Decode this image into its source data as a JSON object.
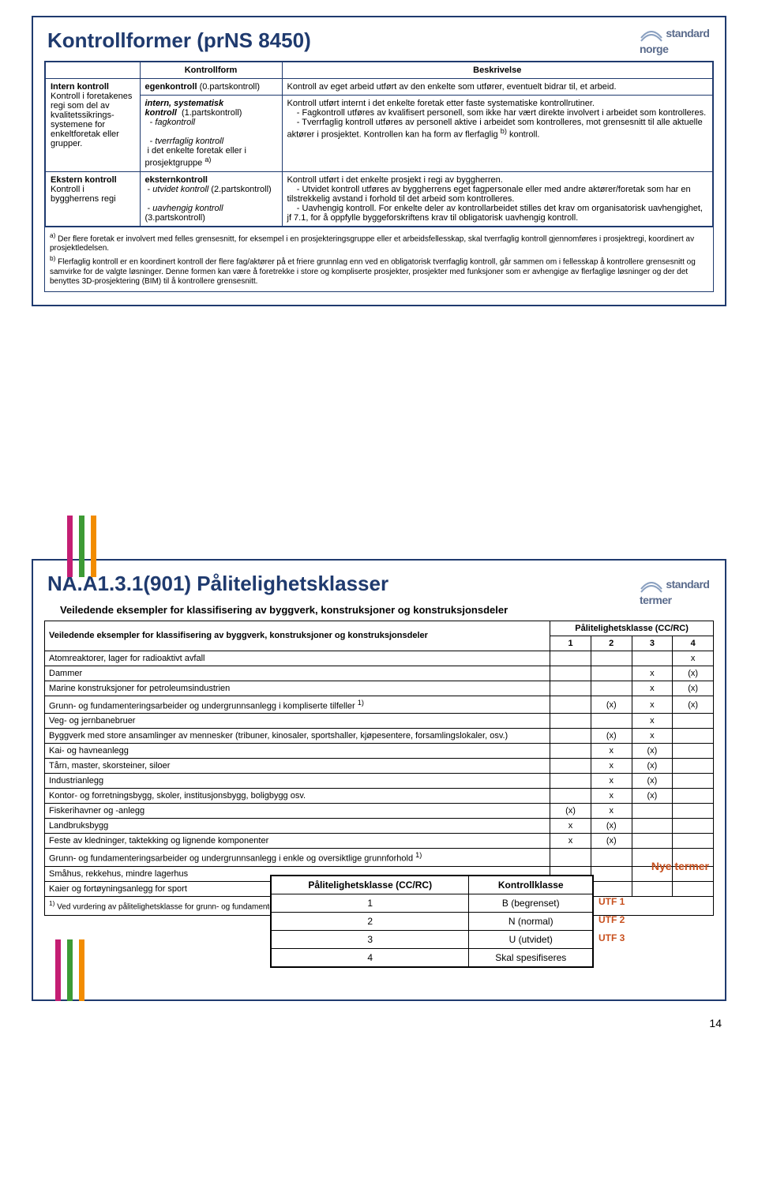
{
  "page_number": "14",
  "slide1": {
    "title": "Kontrollformer (prNS 8450)",
    "logo": {
      "line1": "standard",
      "line2": "norge"
    },
    "headers": {
      "c1": "",
      "c2": "Kontrollform",
      "c3": "Beskrivelse"
    },
    "rows": [
      {
        "c1": "<b>Intern kontroll</b><br>Kontroll i foretakenes regi som del av kvalitetssikrings-systemene for enkeltforetak eller grupper.",
        "c2a": "<b>egenkontroll</b> (0.partskontroll)",
        "c3a": "Kontroll av eget arbeid utført av den enkelte som utfører, eventuelt bidrar til, et arbeid.",
        "c2b": "<b><i>intern, systematisk kontroll</i></b>&nbsp;&nbsp;(1.partskontroll)<br>&nbsp;&nbsp;- <i>fagkontroll</i><br><br>&nbsp;&nbsp;- <i>tverrfaglig kontroll</i><br>&nbsp;i det enkelte foretak eller i prosjektgruppe <sup>a)</sup>",
        "c3b": "Kontroll utført internt i det enkelte foretak etter faste systematiske kontrollrutiner.<br>&nbsp;&nbsp;&nbsp;&nbsp;- Fagkontroll utføres av kvalifisert personell, som ikke har vært direkte involvert i arbeidet som kontrolleres.<br>&nbsp;&nbsp;&nbsp;&nbsp;- Tverrfaglig kontroll utføres av personell aktive i arbeidet som kontrolleres, mot grensesnitt til alle aktuelle aktører i prosjektet. Kontrollen kan ha form av flerfaglig <sup>b)</sup> kontroll."
      },
      {
        "c1": "<b>Ekstern kontroll</b><br>Kontroll i byggherrens regi",
        "c2a": "<b>eksternkontroll</b><br>&nbsp;- <i>utvidet kontroll</i> (2.partskontroll)<br><br>&nbsp;- <i>uavhengig kontroll</i> (3.partskontroll)",
        "c3a": "Kontroll utført i det enkelte prosjekt i regi av byggherren.<br>&nbsp;&nbsp;&nbsp;&nbsp;- Utvidet kontroll utføres av byggherrens eget fagpersonale eller med andre aktører/foretak som har en tilstrekkelig avstand i forhold til det arbeid som kontrolleres.<br>&nbsp;&nbsp;&nbsp;&nbsp;- Uavhengig kontroll. For enkelte deler av kontrollarbeidet stilles det krav om organisatorisk uavhengighet, jf 7.1, for å oppfylle byggeforskriftens krav til obligatorisk uavhengig kontroll."
      }
    ],
    "footnotes": "<sup>a)</sup> Der flere foretak er involvert med felles grensesnitt, for eksempel i en prosjekteringsgruppe eller et arbeidsfellesskap, skal tverrfaglig kontroll gjennomføres i prosjektregi, koordinert av prosjektledelsen.<br><sup>b)</sup> Flerfaglig kontroll er en koordinert kontroll der flere fag/aktører på et friere grunnlag enn ved en obligatorisk tverrfaglig kontroll, går sammen om i fellesskap å kontrollere grensesnitt og samvirke for de valgte løsninger. Denne formen kan være å foretrekke i store og kompliserte prosjekter, prosjekter med funksjoner som er avhengige av flerfaglige løsninger og der det benyttes 3D-prosjektering (BIM) til å kontrollere grensesnitt."
  },
  "slide2": {
    "title": "NA.A1.3.1(901) Pålitelighetsklasser",
    "subtitle": "Veiledende eksempler for klassifisering av byggverk, konstruksjoner og konstruksjonsdeler",
    "logo": {
      "line1": "standard",
      "line2": "norge",
      "line3": "termer"
    },
    "table_header_left": "Veiledende eksempler for klassifisering av byggverk, konstruksjoner og konstruksjonsdeler",
    "table_header_right": "Pålitelighetsklasse (CC/RC)",
    "cols": [
      "1",
      "2",
      "3",
      "4"
    ],
    "rows": [
      {
        "label": "Atomreaktorer, lager for radioaktivt avfall",
        "v": [
          "",
          "",
          "",
          "x"
        ]
      },
      {
        "label": "Dammer",
        "v": [
          "",
          "",
          "x",
          "(x)"
        ]
      },
      {
        "label": "Marine konstruksjoner for petroleumsindustrien",
        "v": [
          "",
          "",
          "x",
          "(x)"
        ]
      },
      {
        "label": "Grunn- og fundamenteringsarbeider og undergrunnsanlegg i kompliserte tilfeller <sup>1)</sup>",
        "v": [
          "",
          "(x)",
          "x",
          "(x)"
        ]
      },
      {
        "label": "Veg- og jernbanebruer",
        "v": [
          "",
          "",
          "x",
          ""
        ]
      },
      {
        "label": "Byggverk med store ansamlinger av mennesker (tribuner, kinosaler, sportshaller, kjøpesentere, forsamlingslokaler, osv.)",
        "v": [
          "",
          "(x)",
          "x",
          ""
        ]
      },
      {
        "label": "Kai- og havneanlegg",
        "v": [
          "",
          "x",
          "(x)",
          ""
        ]
      },
      {
        "label": "Tårn, master, skorsteiner, siloer",
        "v": [
          "",
          "x",
          "(x)",
          ""
        ]
      },
      {
        "label": "Industrianlegg",
        "v": [
          "",
          "x",
          "(x)",
          ""
        ]
      },
      {
        "label": "Kontor- og forretningsbygg, skoler, institusjonsbygg, boligbygg osv.",
        "v": [
          "",
          "x",
          "(x)",
          ""
        ]
      },
      {
        "label": "Fiskerihavner og -anlegg",
        "v": [
          "(x)",
          "x",
          "",
          ""
        ]
      },
      {
        "label": "Landbruksbygg",
        "v": [
          "x",
          "(x)",
          "",
          ""
        ]
      },
      {
        "label": "Feste av kledninger, taktekking og lignende komponenter",
        "v": [
          "x",
          "(x)",
          "",
          ""
        ]
      },
      {
        "label": "Grunn- og fundamenteringsarbeider og undergrunnsanlegg i enkle og oversiktlige grunnforhold <sup>1)</sup>",
        "v": [
          "",
          "",
          "",
          ""
        ]
      },
      {
        "label": "Småhus, rekkehus, mindre lagerhus",
        "v": [
          "",
          "",
          "",
          ""
        ]
      },
      {
        "label": "Kaier og fortøyningsanlegg for sport",
        "v": [
          "",
          "",
          "",
          ""
        ]
      }
    ],
    "footnote": "<sup>1)</sup> Ved vurdering av pålitelighetsklasse for grunn- og fundamenteringsarbeider og undergrunnsanlegg skal det også tas hensyn til omkringliggende",
    "overlay": {
      "headers": [
        "Pålitelighetsklasse (CC/RC)",
        "Kontrollklasse"
      ],
      "rows": [
        {
          "c1": "1",
          "c2": "B (begrenset)",
          "utf": "UTF 1"
        },
        {
          "c1": "2",
          "c2": "N (normal)",
          "utf": "UTF 2"
        },
        {
          "c1": "3",
          "c2": "U (utvidet)",
          "utf": "UTF 3"
        },
        {
          "c1": "4",
          "c2": "Skal spesifiseres",
          "utf": ""
        }
      ]
    },
    "nye_termer": "Nye termer"
  }
}
